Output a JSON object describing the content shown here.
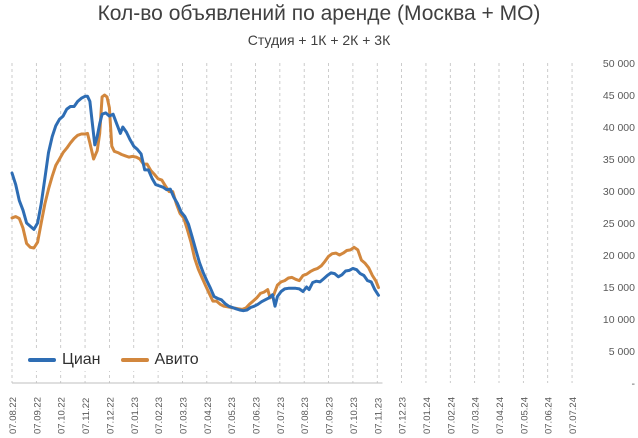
{
  "chart_data": {
    "type": "line",
    "title": "Кол-во объявлений по аренде (Москва + МО)",
    "subtitle": "Студия + 1К + 2К + 3К",
    "xlabel": "",
    "ylabel": "",
    "ylim": [
      0,
      50000
    ],
    "y_ticks": [
      "-",
      "5 000",
      "10 000",
      "15 000",
      "20 000",
      "25 000",
      "30 000",
      "35 000",
      "40 000",
      "45 000",
      "50 000"
    ],
    "y_axis_side": "right",
    "grid": "vertical dashed",
    "legend_position": "bottom-left",
    "x_ticks": [
      "07.08.22",
      "07.09.22",
      "07.10.22",
      "07.11.22",
      "07.12.22",
      "07.01.23",
      "07.02.23",
      "07.03.23",
      "07.04.23",
      "07.05.23",
      "07.06.23",
      "07.07.23",
      "07.08.23",
      "07.09.23",
      "07.10.23",
      "07.11.23",
      "07.12.23",
      "07.01.24",
      "07.02.24",
      "07.03.24",
      "07.04.24",
      "07.05.24",
      "07.06.24",
      "07.07.24"
    ],
    "series": [
      {
        "name": "Циан",
        "color": "#2e6db4",
        "points": [
          [
            0.0,
            32800
          ],
          [
            0.15,
            31000
          ],
          [
            0.3,
            28500
          ],
          [
            0.45,
            27000
          ],
          [
            0.6,
            25000
          ],
          [
            0.75,
            24500
          ],
          [
            0.9,
            24000
          ],
          [
            1.05,
            25000
          ],
          [
            1.2,
            28000
          ],
          [
            1.35,
            32000
          ],
          [
            1.5,
            36000
          ],
          [
            1.65,
            38500
          ],
          [
            1.8,
            40200
          ],
          [
            1.95,
            41200
          ],
          [
            2.1,
            41700
          ],
          [
            2.25,
            42800
          ],
          [
            2.4,
            43200
          ],
          [
            2.55,
            43200
          ],
          [
            2.7,
            44000
          ],
          [
            2.85,
            44500
          ],
          [
            3.0,
            44800
          ],
          [
            3.1,
            44800
          ],
          [
            3.2,
            44000
          ],
          [
            3.3,
            40500
          ],
          [
            3.4,
            37200
          ],
          [
            3.5,
            38500
          ],
          [
            3.6,
            40500
          ],
          [
            3.7,
            42000
          ],
          [
            3.85,
            42200
          ],
          [
            4.0,
            41700
          ],
          [
            4.15,
            42000
          ],
          [
            4.3,
            40500
          ],
          [
            4.45,
            39000
          ],
          [
            4.55,
            40000
          ],
          [
            4.7,
            39200
          ],
          [
            4.85,
            38000
          ],
          [
            5.0,
            37000
          ],
          [
            5.15,
            36500
          ],
          [
            5.3,
            35800
          ],
          [
            5.45,
            33300
          ],
          [
            5.6,
            33300
          ],
          [
            5.75,
            32000
          ],
          [
            5.9,
            31000
          ],
          [
            6.05,
            30800
          ],
          [
            6.2,
            30600
          ],
          [
            6.35,
            30200
          ],
          [
            6.5,
            30300
          ],
          [
            6.65,
            29000
          ],
          [
            6.8,
            28000
          ],
          [
            6.95,
            26700
          ],
          [
            7.1,
            26000
          ],
          [
            7.25,
            24800
          ],
          [
            7.4,
            22800
          ],
          [
            7.55,
            20800
          ],
          [
            7.7,
            18800
          ],
          [
            7.85,
            17300
          ],
          [
            8.0,
            16000
          ],
          [
            8.15,
            14800
          ],
          [
            8.3,
            13500
          ],
          [
            8.45,
            13200
          ],
          [
            8.6,
            13000
          ],
          [
            8.75,
            12400
          ],
          [
            8.9,
            12000
          ],
          [
            9.05,
            11800
          ],
          [
            9.2,
            11600
          ],
          [
            9.35,
            11400
          ],
          [
            9.5,
            11300
          ],
          [
            9.65,
            11400
          ],
          [
            9.8,
            11800
          ],
          [
            9.95,
            12000
          ],
          [
            10.1,
            12300
          ],
          [
            10.25,
            12700
          ],
          [
            10.4,
            13000
          ],
          [
            10.55,
            13300
          ],
          [
            10.7,
            13800
          ],
          [
            10.8,
            12000
          ],
          [
            10.9,
            13500
          ],
          [
            11.05,
            14300
          ],
          [
            11.2,
            14700
          ],
          [
            11.35,
            14800
          ],
          [
            11.5,
            14800
          ],
          [
            11.65,
            14800
          ],
          [
            11.8,
            14700
          ],
          [
            11.95,
            14300
          ],
          [
            12.1,
            15000
          ],
          [
            12.2,
            14600
          ],
          [
            12.35,
            15700
          ],
          [
            12.5,
            15900
          ],
          [
            12.65,
            15800
          ],
          [
            12.8,
            16300
          ],
          [
            12.95,
            16800
          ],
          [
            13.1,
            17200
          ],
          [
            13.25,
            17100
          ],
          [
            13.4,
            16600
          ],
          [
            13.55,
            16900
          ],
          [
            13.7,
            17500
          ],
          [
            13.85,
            17600
          ],
          [
            14.0,
            17900
          ],
          [
            14.15,
            17700
          ],
          [
            14.3,
            17100
          ],
          [
            14.45,
            16800
          ],
          [
            14.6,
            16000
          ],
          [
            14.75,
            15800
          ],
          [
            14.9,
            14600
          ],
          [
            15.05,
            13700
          ]
        ]
      },
      {
        "name": "Авито",
        "color": "#d2873d",
        "points": [
          [
            0.0,
            25800
          ],
          [
            0.15,
            26000
          ],
          [
            0.3,
            25700
          ],
          [
            0.45,
            24200
          ],
          [
            0.6,
            21800
          ],
          [
            0.75,
            21200
          ],
          [
            0.9,
            21100
          ],
          [
            1.05,
            22000
          ],
          [
            1.2,
            25000
          ],
          [
            1.35,
            28000
          ],
          [
            1.5,
            30300
          ],
          [
            1.65,
            32300
          ],
          [
            1.8,
            34000
          ],
          [
            1.95,
            35000
          ],
          [
            2.1,
            36000
          ],
          [
            2.25,
            36700
          ],
          [
            2.4,
            37500
          ],
          [
            2.55,
            38200
          ],
          [
            2.7,
            38700
          ],
          [
            2.85,
            38900
          ],
          [
            3.0,
            38900
          ],
          [
            3.1,
            39000
          ],
          [
            3.2,
            37500
          ],
          [
            3.35,
            35000
          ],
          [
            3.5,
            36300
          ],
          [
            3.6,
            39000
          ],
          [
            3.7,
            44700
          ],
          [
            3.8,
            45000
          ],
          [
            3.9,
            44700
          ],
          [
            4.0,
            43000
          ],
          [
            4.1,
            37000
          ],
          [
            4.2,
            36200
          ],
          [
            4.35,
            36000
          ],
          [
            4.5,
            35700
          ],
          [
            4.65,
            35500
          ],
          [
            4.8,
            35300
          ],
          [
            4.95,
            35400
          ],
          [
            5.1,
            35300
          ],
          [
            5.25,
            35000
          ],
          [
            5.4,
            34200
          ],
          [
            5.55,
            34200
          ],
          [
            5.7,
            33200
          ],
          [
            5.85,
            32600
          ],
          [
            6.0,
            31900
          ],
          [
            6.15,
            31700
          ],
          [
            6.3,
            30800
          ],
          [
            6.45,
            29900
          ],
          [
            6.6,
            29900
          ],
          [
            6.75,
            28000
          ],
          [
            6.9,
            26500
          ],
          [
            7.05,
            25800
          ],
          [
            7.2,
            24000
          ],
          [
            7.35,
            22000
          ],
          [
            7.5,
            19500
          ],
          [
            7.65,
            17800
          ],
          [
            7.8,
            16500
          ],
          [
            7.95,
            15200
          ],
          [
            8.1,
            14000
          ],
          [
            8.25,
            12800
          ],
          [
            8.4,
            12800
          ],
          [
            8.55,
            12300
          ],
          [
            8.7,
            12000
          ],
          [
            8.85,
            11900
          ],
          [
            9.0,
            11800
          ],
          [
            9.15,
            11700
          ],
          [
            9.3,
            11600
          ],
          [
            9.45,
            11500
          ],
          [
            9.6,
            11700
          ],
          [
            9.75,
            12300
          ],
          [
            9.9,
            12800
          ],
          [
            10.05,
            13300
          ],
          [
            10.2,
            14000
          ],
          [
            10.35,
            14200
          ],
          [
            10.5,
            14600
          ],
          [
            10.6,
            13300
          ],
          [
            10.75,
            13800
          ],
          [
            10.9,
            15300
          ],
          [
            11.05,
            15800
          ],
          [
            11.2,
            16000
          ],
          [
            11.35,
            16400
          ],
          [
            11.5,
            16500
          ],
          [
            11.65,
            16200
          ],
          [
            11.8,
            16000
          ],
          [
            11.95,
            16800
          ],
          [
            12.1,
            17000
          ],
          [
            12.25,
            17400
          ],
          [
            12.4,
            17700
          ],
          [
            12.55,
            17900
          ],
          [
            12.7,
            18300
          ],
          [
            12.85,
            19000
          ],
          [
            13.0,
            19800
          ],
          [
            13.15,
            20200
          ],
          [
            13.3,
            20300
          ],
          [
            13.45,
            20000
          ],
          [
            13.6,
            20300
          ],
          [
            13.75,
            20700
          ],
          [
            13.9,
            20800
          ],
          [
            14.05,
            21200
          ],
          [
            14.2,
            20800
          ],
          [
            14.35,
            19200
          ],
          [
            14.5,
            18700
          ],
          [
            14.65,
            18000
          ],
          [
            14.8,
            16800
          ],
          [
            14.95,
            15900
          ],
          [
            15.05,
            14900
          ]
        ]
      }
    ]
  }
}
